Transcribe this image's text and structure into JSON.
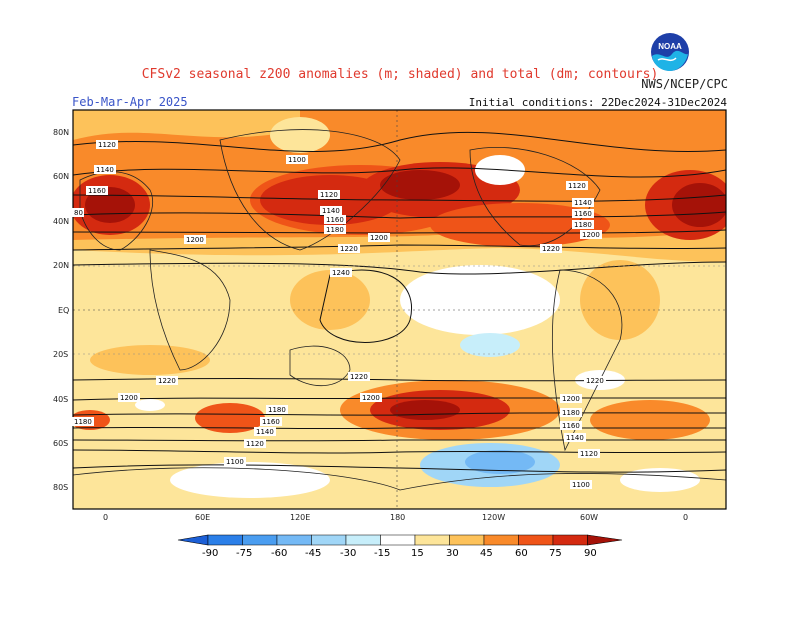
{
  "header": {
    "title": "CFSv2 seasonal z200 anomalies (m; shaded) and total (dm; contours)",
    "agency": "NWS/NCEP/CPC",
    "period": "Feb-Mar-Apr 2025",
    "initial_conditions": "Initial conditions: 22Dec2024-31Dec2024",
    "logo_text": "NOAA"
  },
  "axes": {
    "lat_labels": [
      "80N",
      "60N",
      "40N",
      "20N",
      "EQ",
      "20S",
      "40S",
      "60S",
      "80S"
    ],
    "lon_labels": [
      "0",
      "60E",
      "120E",
      "180",
      "120W",
      "60W",
      "0"
    ]
  },
  "contour_labels": [
    "1120",
    "1100",
    "1140",
    "1160",
    "1180",
    "1200",
    "1220",
    "1240",
    "80",
    "1120",
    "1140",
    "1160",
    "1180",
    "1200",
    "1220",
    "1220",
    "1220",
    "1200",
    "1180",
    "1160",
    "1140",
    "1120",
    "1100",
    "1200",
    "1180",
    "1160",
    "1140",
    "1120",
    "1100",
    "1220",
    "1200",
    "1180",
    "1160",
    "1140",
    "1120",
    "1100"
  ],
  "colorbar": {
    "levels": [
      "-90",
      "-75",
      "-60",
      "-45",
      "-30",
      "-15",
      "15",
      "30",
      "45",
      "60",
      "75",
      "90"
    ],
    "colors": [
      "#1c5fd6",
      "#2b7fe8",
      "#4a9df0",
      "#74b9f5",
      "#a0d6f7",
      "#c7eefa",
      "#ffffff",
      "#fde59a",
      "#fdc25a",
      "#f98a2a",
      "#ef5418",
      "#d42a10",
      "#a51208"
    ]
  },
  "colors": {
    "title": "#e03a2e",
    "period": "#3a55c8"
  }
}
